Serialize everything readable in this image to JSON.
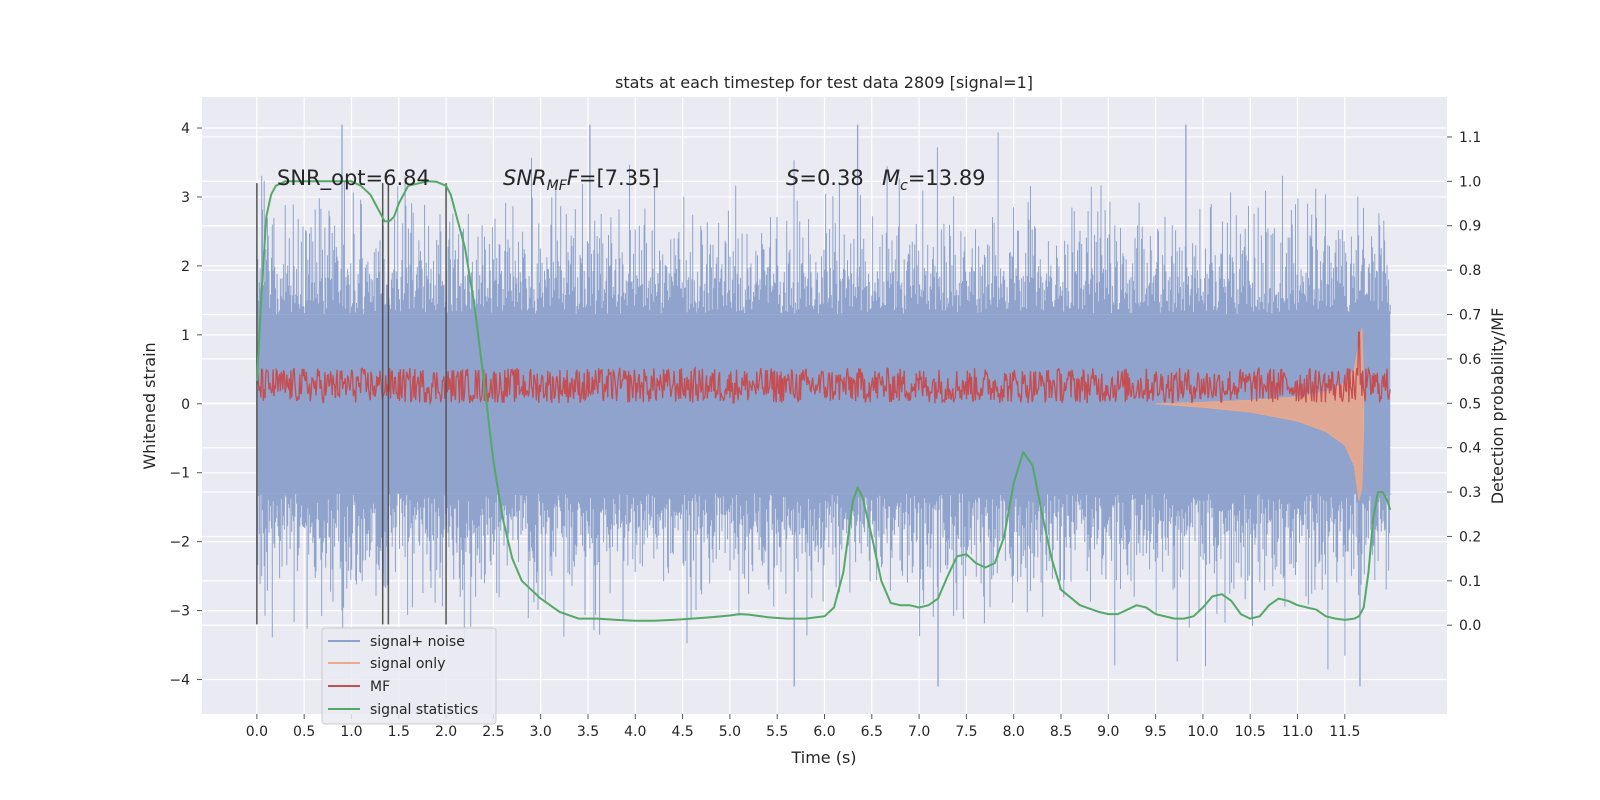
{
  "chart_data": {
    "type": "line",
    "title": "stats at each timestep for test data 2809 [signal=1]",
    "xlabel": "Time (s)",
    "ylabel": "Whitened strain",
    "ylabel_right": "Detection probability/MF",
    "xlim": [
      -0.58,
      12.58
    ],
    "ylim": [
      -4.5,
      4.45
    ],
    "ylim_right": [
      -0.2,
      1.19
    ],
    "xticks": [
      0.0,
      0.5,
      1.0,
      1.5,
      2.0,
      2.5,
      3.0,
      3.5,
      4.0,
      4.5,
      5.0,
      5.5,
      6.0,
      6.5,
      7.0,
      7.5,
      8.0,
      8.5,
      9.0,
      9.5,
      10.0,
      10.5,
      11.0,
      11.5
    ],
    "xtick_labels": [
      "0.0",
      "0.5",
      "1.0",
      "1.5",
      "2.0",
      "2.5",
      "3.0",
      "3.5",
      "4.0",
      "4.5",
      "5.0",
      "5.5",
      "6.0",
      "6.5",
      "7.0",
      "7.5",
      "8.0",
      "8.5",
      "9.0",
      "9.5",
      "10.0",
      "10.5",
      "11.0",
      "11.5"
    ],
    "yticks": [
      -4,
      -3,
      -2,
      -1,
      0,
      1,
      2,
      3,
      4
    ],
    "ytick_labels": [
      "−4",
      "−3",
      "−2",
      "−1",
      "0",
      "1",
      "2",
      "3",
      "4"
    ],
    "yticks_right": [
      0.0,
      0.1,
      0.2,
      0.3,
      0.4,
      0.5,
      0.6,
      0.7,
      0.8,
      0.9,
      1.0,
      1.1
    ],
    "ytick_labels_right": [
      "0.0",
      "0.1",
      "0.2",
      "0.3",
      "0.4",
      "0.5",
      "0.6",
      "0.7",
      "0.8",
      "0.9",
      "1.0",
      "1.1"
    ],
    "grid": true,
    "legend_position": "lower-left",
    "annotations": {
      "snr_opt": "SNR_opt=6.84",
      "snr_mf_sym": "SNR",
      "snr_mf_sub": "MF",
      "snr_mf_sym2": "F",
      "snr_mf_val": "=[7.35]",
      "s_sym": "S",
      "s_val": "=0.38",
      "mc_sym": "M",
      "mc_sub": "c",
      "mc_val": "=13.89"
    },
    "vertical_markers_x": [
      0.0,
      1.33,
      1.39,
      2.0
    ],
    "series": [
      {
        "name": "signal+ noise",
        "color": "#8fa3cc",
        "axis": "left",
        "x_range": [
          0.0,
          11.98
        ],
        "envelope": {
          "typical_abs": 1.3,
          "peak_max": 4.05,
          "peak_min": -4.1
        }
      },
      {
        "name": "signal only",
        "color": "#e9a98c",
        "axis": "left",
        "x": [
          9.5,
          10.0,
          10.5,
          11.0,
          11.3,
          11.5,
          11.6,
          11.65,
          11.68,
          11.7
        ],
        "upper": [
          0.0,
          0.02,
          0.05,
          0.1,
          0.18,
          0.3,
          0.5,
          0.9,
          1.1,
          0.2
        ],
        "lower": [
          0.0,
          -0.05,
          -0.12,
          -0.25,
          -0.4,
          -0.6,
          -0.9,
          -1.4,
          -1.2,
          -0.3
        ]
      },
      {
        "name": "MF",
        "color": "#c44e52",
        "axis": "right",
        "baseline": 0.54,
        "spread": 0.04,
        "spike": {
          "x": 11.65,
          "y": 0.66
        }
      },
      {
        "name": "signal statistics",
        "color": "#55a868",
        "axis": "right",
        "x": [
          0.0,
          0.05,
          0.1,
          0.15,
          0.2,
          0.3,
          0.5,
          0.8,
          1.0,
          1.1,
          1.2,
          1.3,
          1.35,
          1.4,
          1.45,
          1.5,
          1.6,
          1.8,
          1.9,
          2.0,
          2.05,
          2.1,
          2.2,
          2.3,
          2.4,
          2.5,
          2.6,
          2.7,
          2.8,
          3.0,
          3.2,
          3.4,
          3.6,
          3.8,
          4.0,
          4.2,
          4.4,
          4.6,
          4.8,
          5.0,
          5.1,
          5.2,
          5.4,
          5.6,
          5.8,
          6.0,
          6.1,
          6.2,
          6.3,
          6.35,
          6.4,
          6.5,
          6.6,
          6.7,
          6.8,
          6.9,
          7.0,
          7.1,
          7.2,
          7.3,
          7.4,
          7.5,
          7.6,
          7.7,
          7.8,
          7.9,
          8.0,
          8.1,
          8.2,
          8.3,
          8.4,
          8.5,
          8.7,
          8.9,
          9.0,
          9.1,
          9.2,
          9.3,
          9.4,
          9.5,
          9.7,
          9.8,
          9.9,
          10.0,
          10.1,
          10.2,
          10.3,
          10.4,
          10.5,
          10.6,
          10.7,
          10.8,
          10.9,
          11.0,
          11.1,
          11.2,
          11.3,
          11.4,
          11.5,
          11.6,
          11.65,
          11.7,
          11.75,
          11.8,
          11.85,
          11.9,
          11.95,
          11.98
        ],
        "y": [
          0.55,
          0.75,
          0.92,
          0.97,
          0.99,
          1.0,
          1.0,
          1.0,
          1.0,
          0.99,
          0.97,
          0.93,
          0.91,
          0.91,
          0.92,
          0.95,
          0.99,
          1.0,
          0.999,
          0.99,
          0.97,
          0.93,
          0.85,
          0.72,
          0.55,
          0.37,
          0.24,
          0.15,
          0.1,
          0.06,
          0.03,
          0.015,
          0.015,
          0.012,
          0.01,
          0.01,
          0.012,
          0.015,
          0.018,
          0.022,
          0.025,
          0.024,
          0.018,
          0.015,
          0.015,
          0.02,
          0.04,
          0.12,
          0.28,
          0.31,
          0.29,
          0.2,
          0.1,
          0.05,
          0.045,
          0.045,
          0.04,
          0.045,
          0.06,
          0.11,
          0.155,
          0.16,
          0.14,
          0.13,
          0.14,
          0.2,
          0.32,
          0.39,
          0.36,
          0.25,
          0.15,
          0.08,
          0.045,
          0.03,
          0.025,
          0.025,
          0.035,
          0.045,
          0.04,
          0.025,
          0.015,
          0.015,
          0.02,
          0.04,
          0.065,
          0.07,
          0.055,
          0.025,
          0.015,
          0.02,
          0.045,
          0.06,
          0.055,
          0.045,
          0.04,
          0.035,
          0.02,
          0.015,
          0.012,
          0.015,
          0.02,
          0.04,
          0.12,
          0.24,
          0.3,
          0.3,
          0.28,
          0.26
        ]
      }
    ]
  }
}
